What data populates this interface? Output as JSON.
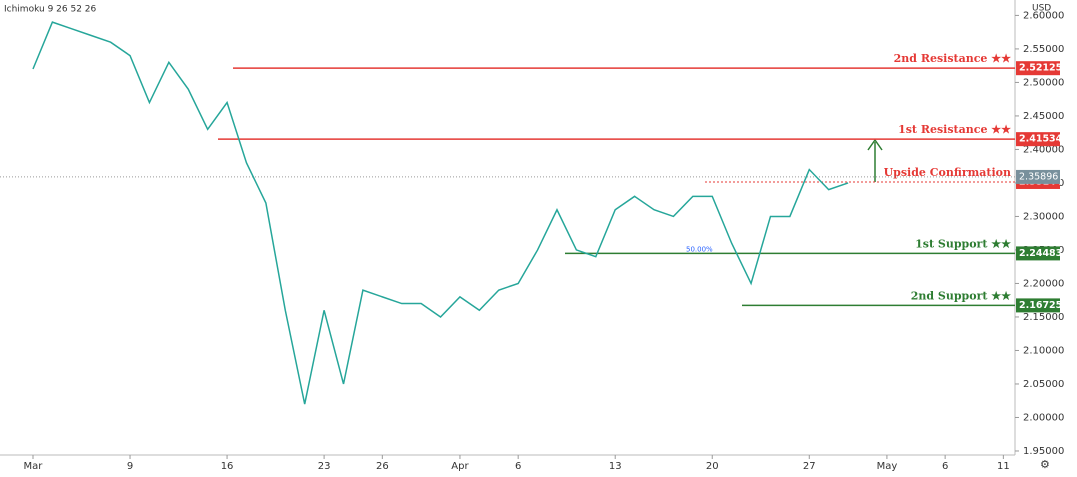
{
  "chart_data": {
    "type": "line",
    "indicator": "Ichimoku 9 26 52 26",
    "currency": "USD",
    "x": [
      0,
      1,
      2,
      3,
      4,
      5,
      6,
      7,
      8,
      9,
      10,
      11,
      12,
      13,
      14,
      15,
      16,
      17,
      18,
      19,
      20,
      21,
      22,
      23,
      24,
      25,
      26,
      27,
      28,
      29,
      30,
      31,
      32,
      33,
      34,
      35,
      36,
      37,
      38,
      39,
      40,
      41,
      42
    ],
    "series": [
      {
        "color": "#26a69a",
        "values": [
          2.52,
          2.59,
          2.58,
          2.57,
          2.56,
          2.54,
          2.47,
          2.53,
          2.49,
          2.43,
          2.47,
          2.38,
          2.32,
          2.16,
          2.02,
          2.16,
          2.05,
          2.19,
          2.18,
          2.17,
          2.17,
          2.15,
          2.18,
          2.16,
          2.19,
          2.2,
          2.25,
          2.31,
          2.25,
          2.24,
          2.31,
          2.33,
          2.31,
          2.3,
          2.33,
          2.33,
          2.26,
          2.2,
          2.3,
          2.3,
          2.37,
          2.34,
          2.35
        ]
      }
    ],
    "xlim": [
      -1.7,
      50.6
    ],
    "xticks": [
      {
        "value": 0,
        "label": "Mar"
      },
      {
        "value": 5,
        "label": "9"
      },
      {
        "value": 10,
        "label": "16"
      },
      {
        "value": 15,
        "label": "23"
      },
      {
        "value": 18,
        "label": "26"
      },
      {
        "value": 22,
        "label": "Apr"
      },
      {
        "value": 25,
        "label": "6"
      },
      {
        "value": 30,
        "label": "13"
      },
      {
        "value": 35,
        "label": "20"
      },
      {
        "value": 40,
        "label": "27"
      },
      {
        "value": 44,
        "label": "May"
      },
      {
        "value": 47,
        "label": "6"
      },
      {
        "value": 50,
        "label": "11"
      }
    ],
    "ylim": [
      1.944,
      2.623
    ],
    "yticks": [
      {
        "value": 1.95,
        "label": "1.95000"
      },
      {
        "value": 2.0,
        "label": "2.00000"
      },
      {
        "value": 2.05,
        "label": "2.05000"
      },
      {
        "value": 2.1,
        "label": "2.10000"
      },
      {
        "value": 2.15,
        "label": "2.15000"
      },
      {
        "value": 2.2,
        "label": "2.20000"
      },
      {
        "value": 2.25,
        "label": "2.25000"
      },
      {
        "value": 2.3,
        "label": "2.30000"
      },
      {
        "value": 2.35,
        "label": "2.35000"
      },
      {
        "value": 2.4,
        "label": "2.40000"
      },
      {
        "value": 2.45,
        "label": "2.45000"
      },
      {
        "value": 2.5,
        "label": "2.50000"
      },
      {
        "value": 2.55,
        "label": "2.55000"
      },
      {
        "value": 2.6,
        "label": "2.60000"
      }
    ],
    "current_price": 2.35896,
    "levels": [
      {
        "name": "2nd Resistance ★★",
        "value": 2.52125,
        "color": "#e53935"
      },
      {
        "name": "1st Resistance ★★",
        "value": 2.41534,
        "color": "#e53935"
      },
      {
        "name": "Upside Confirmation",
        "value": 2.35144,
        "color": "#e53935"
      },
      {
        "name": "1st Support ★★",
        "value": 2.24483,
        "color": "#2e7d32"
      },
      {
        "name": "2nd Support ★★",
        "value": 2.16725,
        "color": "#2e7d32"
      }
    ],
    "fib_label": "50.00%"
  }
}
